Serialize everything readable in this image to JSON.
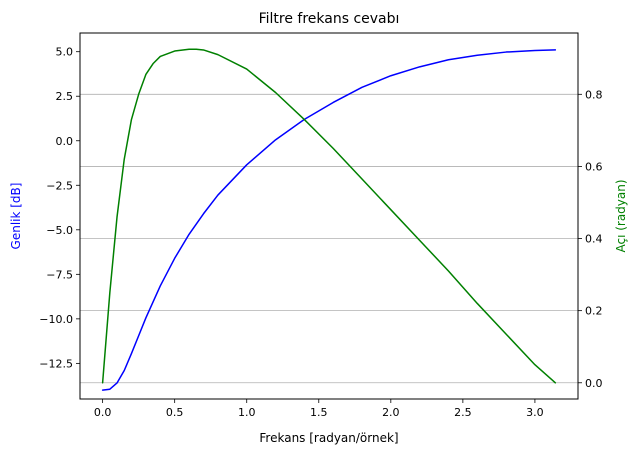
{
  "chart_data": {
    "type": "line",
    "title": "Filtre frekans cevabı",
    "xlabel": "Frekans [radyan/örnek]",
    "ylabel_left": "Genlik [dB]",
    "ylabel_right": "Açı (radyan)",
    "xlim": [
      -0.157,
      3.299
    ],
    "ylim_left": [
      -14.5,
      6.05
    ],
    "ylim_right": [
      -0.045,
      0.97
    ],
    "x_ticks": [
      0.0,
      0.5,
      1.0,
      1.5,
      2.0,
      2.5,
      3.0
    ],
    "x_tick_labels": [
      "0.0",
      "0.5",
      "1.0",
      "1.5",
      "2.0",
      "2.5",
      "3.0"
    ],
    "y_left_ticks": [
      5.0,
      2.5,
      0.0,
      -2.5,
      -5.0,
      -7.5,
      -10.0,
      -12.5
    ],
    "y_left_tick_labels": [
      "5.0",
      "2.5",
      "0.0",
      "−2.5",
      "−5.0",
      "−7.5",
      "−10.0",
      "−12.5"
    ],
    "y_right_ticks": [
      0.0,
      0.2,
      0.4,
      0.6,
      0.8
    ],
    "y_right_tick_labels": [
      "0.0",
      "0.2",
      "0.4",
      "0.6",
      "0.8"
    ],
    "grid": "horizontal lines at right-axis ticks",
    "colors": {
      "amplitude": "#0000ff",
      "angle": "#008000",
      "grid": "#b0b0b0",
      "axes": "#000000"
    },
    "series": [
      {
        "axis": "left",
        "color": "#0000ff",
        "x": [
          0.0,
          0.05,
          0.1,
          0.15,
          0.2,
          0.25,
          0.3,
          0.4,
          0.5,
          0.6,
          0.7,
          0.8,
          1.0,
          1.2,
          1.4,
          1.6,
          1.8,
          2.0,
          2.2,
          2.4,
          2.6,
          2.8,
          3.0,
          3.1416
        ],
        "values": [
          -14.0,
          -13.95,
          -13.6,
          -12.9,
          -11.95,
          -10.95,
          -9.95,
          -8.15,
          -6.6,
          -5.25,
          -4.1,
          -3.05,
          -1.35,
          0.05,
          1.2,
          2.15,
          3.0,
          3.65,
          4.15,
          4.55,
          4.8,
          4.98,
          5.07,
          5.1
        ]
      },
      {
        "axis": "right",
        "color": "#008000",
        "x": [
          0.0,
          0.05,
          0.1,
          0.15,
          0.2,
          0.25,
          0.3,
          0.35,
          0.4,
          0.5,
          0.6,
          0.65,
          0.7,
          0.8,
          1.0,
          1.2,
          1.4,
          1.6,
          1.8,
          2.0,
          2.2,
          2.4,
          2.6,
          2.8,
          3.0,
          3.1416
        ],
        "values": [
          0.0,
          0.25,
          0.46,
          0.62,
          0.73,
          0.8,
          0.855,
          0.885,
          0.905,
          0.92,
          0.925,
          0.925,
          0.923,
          0.91,
          0.87,
          0.805,
          0.73,
          0.65,
          0.565,
          0.48,
          0.395,
          0.31,
          0.22,
          0.135,
          0.05,
          0.0
        ]
      }
    ]
  }
}
